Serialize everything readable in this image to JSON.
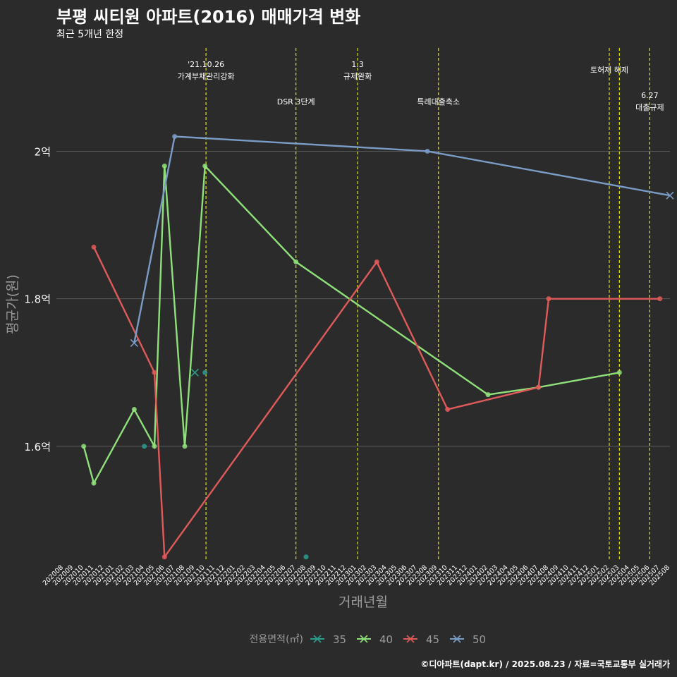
{
  "title": "부평 씨티원 아파트(2016) 매매가격 변화",
  "subtitle": "최근 5개년 한정",
  "caption": "©디아파트(dapt.kr) / 2025.08.23 / 자료=국토교통부 실거래가",
  "colors": {
    "background": "#2b2b2b",
    "grid": "#5a5a5a",
    "text": "#ffffff",
    "muted": "#9a9a9a",
    "event": "#e5e500"
  },
  "chart_data": {
    "type": "line",
    "xlabel": "거래년월",
    "ylabel": "평균가(원)",
    "ylim": [
      1.445,
      2.14
    ],
    "y_ticks": [
      {
        "value": 1.6,
        "label": "1.6억"
      },
      {
        "value": 1.8,
        "label": "1.8억"
      },
      {
        "value": 2.0,
        "label": "2억"
      }
    ],
    "x_months": [
      "202008",
      "202009",
      "202010",
      "202011",
      "202012",
      "202101",
      "202102",
      "202103",
      "202104",
      "202105",
      "202106",
      "202107",
      "202108",
      "202109",
      "202110",
      "202111",
      "202112",
      "202201",
      "202202",
      "202203",
      "202204",
      "202205",
      "202206",
      "202207",
      "202208",
      "202209",
      "202210",
      "202211",
      "202212",
      "202301",
      "202302",
      "202303",
      "202304",
      "202305",
      "202306",
      "202307",
      "202308",
      "202309",
      "202310",
      "202311",
      "202312",
      "202401",
      "202402",
      "202403",
      "202404",
      "202405",
      "202406",
      "202407",
      "202408",
      "202409",
      "202410",
      "202411",
      "202412",
      "202501",
      "202502",
      "202503",
      "202504",
      "202505",
      "202506",
      "202507",
      "202508"
    ],
    "events": [
      {
        "x": 14.1,
        "lines": [
          "'21.10.26",
          "가계부채관리강화"
        ],
        "level": 0
      },
      {
        "x": 23.0,
        "lines": [
          "DSR 3단계"
        ],
        "level": 2
      },
      {
        "x": 29.1,
        "lines": [
          "1.3",
          "규제완화"
        ],
        "level": 0
      },
      {
        "x": 37.1,
        "lines": [
          "특례대출축소"
        ],
        "level": 2
      },
      {
        "x": 54.0,
        "lines": [
          "토허제 해제"
        ],
        "level": 1
      },
      {
        "x": 55.0,
        "lines": [],
        "level": 1
      },
      {
        "x": 58.0,
        "lines": [
          "6.27",
          "대출규제"
        ],
        "level": 3
      }
    ],
    "legend_title": "전용면적(㎡)",
    "series": [
      {
        "name": "35",
        "color": "#2a9d8f",
        "line": false,
        "points": [
          {
            "x": 8,
            "y": 1.6
          },
          {
            "x": 14,
            "y": 1.7
          },
          {
            "x": 24,
            "y": 1.45
          }
        ],
        "last": {
          "x": 13,
          "y": 1.7
        }
      },
      {
        "name": "40",
        "color": "#8fe07a",
        "line": true,
        "points": [
          {
            "x": 2,
            "y": 1.6
          },
          {
            "x": 3,
            "y": 1.55
          },
          {
            "x": 7,
            "y": 1.65
          },
          {
            "x": 9,
            "y": 1.6
          },
          {
            "x": 10,
            "y": 1.98
          },
          {
            "x": 12,
            "y": 1.6
          },
          {
            "x": 14,
            "y": 1.98
          },
          {
            "x": 23,
            "y": 1.85
          },
          {
            "x": 42,
            "y": 1.67
          },
          {
            "x": 47,
            "y": 1.68
          },
          {
            "x": 55,
            "y": 1.7
          }
        ]
      },
      {
        "name": "45",
        "color": "#e05a5a",
        "line": true,
        "points": [
          {
            "x": 3,
            "y": 1.87
          },
          {
            "x": 9,
            "y": 1.7
          },
          {
            "x": 10,
            "y": 1.45
          },
          {
            "x": 31,
            "y": 1.85
          },
          {
            "x": 38,
            "y": 1.65
          },
          {
            "x": 47,
            "y": 1.68
          },
          {
            "x": 48,
            "y": 1.8
          },
          {
            "x": 59,
            "y": 1.8
          }
        ]
      },
      {
        "name": "50",
        "color": "#7a9cc6",
        "line": true,
        "points": [
          {
            "x": 7,
            "y": 1.74
          },
          {
            "x": 11,
            "y": 2.02
          },
          {
            "x": 36,
            "y": 2.0
          },
          {
            "x": 60,
            "y": 1.94
          }
        ],
        "first_is_x": true,
        "last_is_x": true
      }
    ]
  }
}
